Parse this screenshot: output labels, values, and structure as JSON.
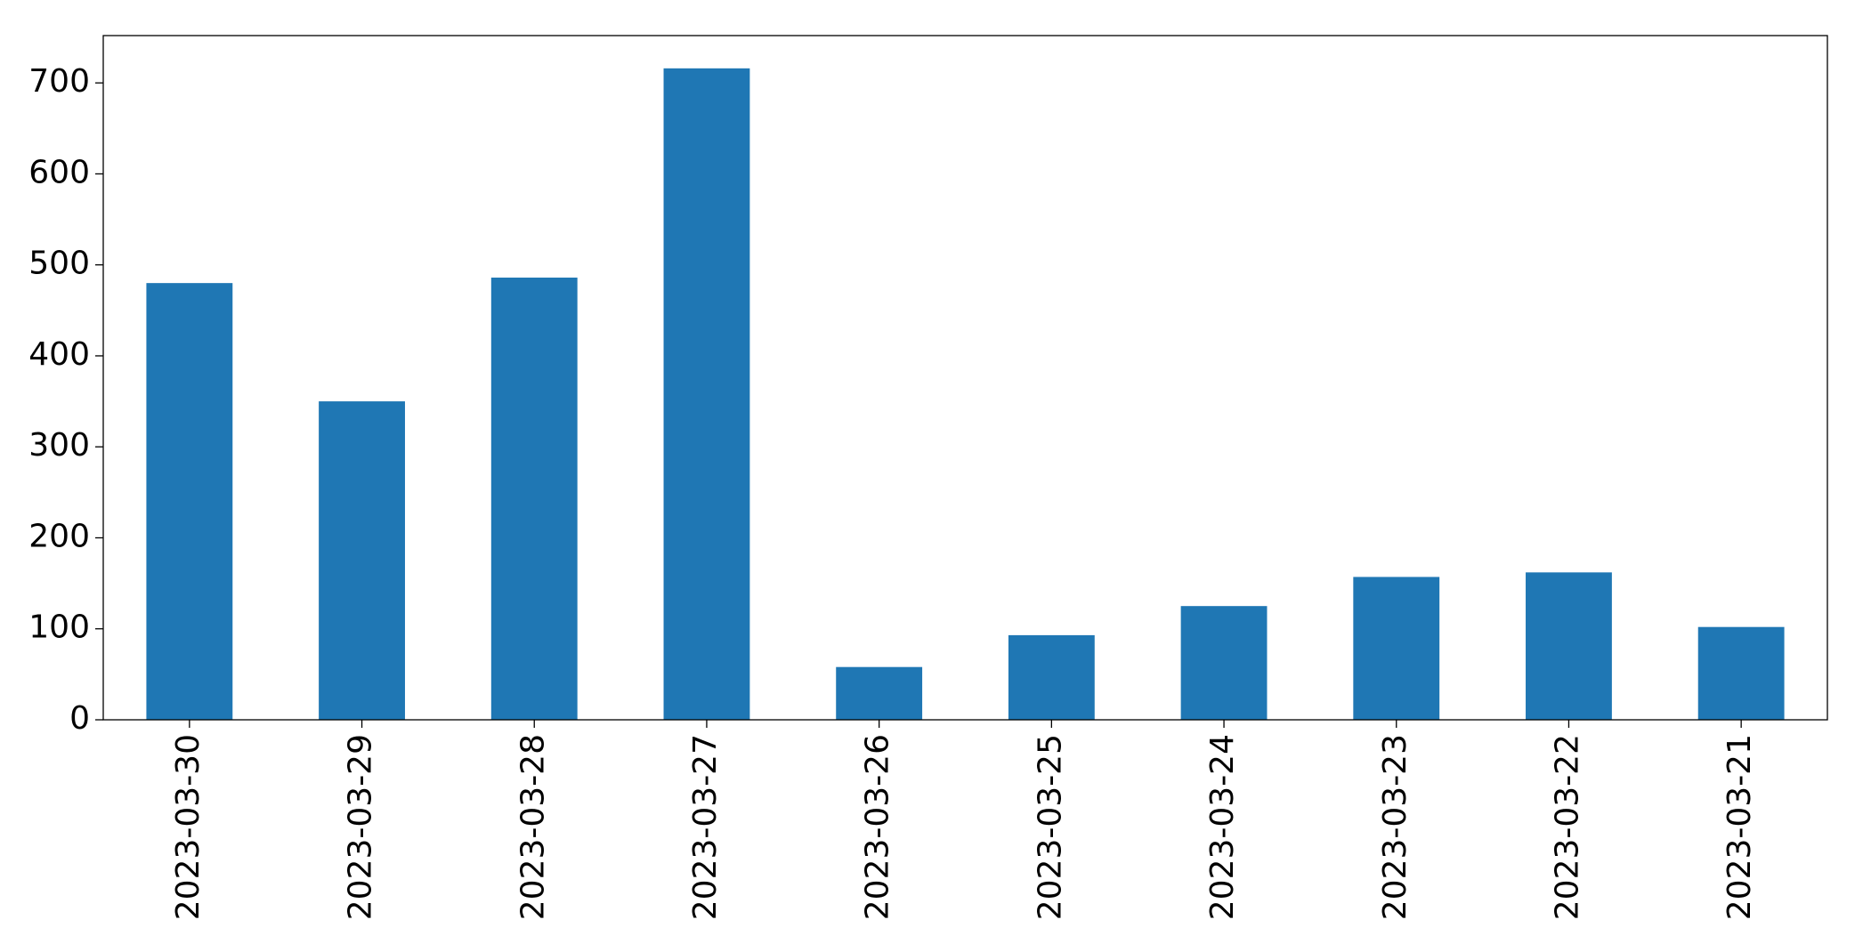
{
  "chart_data": {
    "type": "bar",
    "categories": [
      "2023-03-30",
      "2023-03-29",
      "2023-03-28",
      "2023-03-27",
      "2023-03-26",
      "2023-03-25",
      "2023-03-24",
      "2023-03-23",
      "2023-03-22",
      "2023-03-21"
    ],
    "values": [
      480,
      350,
      486,
      716,
      58,
      93,
      125,
      157,
      162,
      102
    ],
    "color": "#1f77b4",
    "ylim": [
      0,
      752
    ],
    "yticks": [
      0,
      100,
      200,
      300,
      400,
      500,
      600,
      700
    ],
    "grid": false
  }
}
